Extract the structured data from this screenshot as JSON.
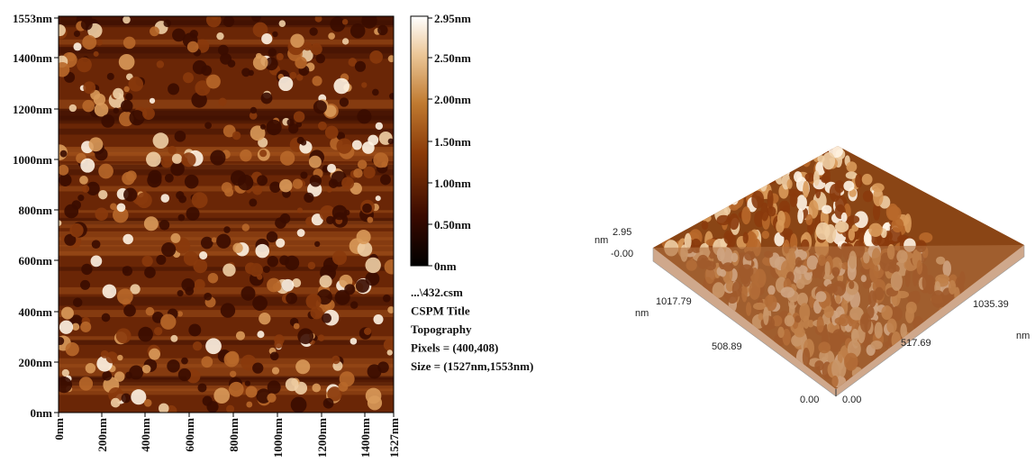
{
  "topography_2d": {
    "y_axis_labels": [
      "1553nm",
      "1400nm",
      "1200nm",
      "1000nm",
      "800nm",
      "600nm",
      "400nm",
      "200nm",
      "0nm"
    ],
    "x_axis_labels": [
      "0nm",
      "200nm",
      "400nm",
      "600nm",
      "800nm",
      "1000nm",
      "1200nm",
      "1400nm",
      "1527nm"
    ],
    "colorbar_labels": [
      "2.95nm",
      "2.50nm",
      "2.00nm",
      "1.50nm",
      "1.00nm",
      "0.50nm",
      "0nm"
    ],
    "info": [
      "...\\432.csm",
      "CSPM Title",
      "Topography",
      "Pixels = (400,408)",
      "Size = (1527nm,1553nm)"
    ]
  },
  "surface_3d": {
    "z_unit": "nm",
    "z_max": "2.95",
    "z_min": "-0.00",
    "left_axis_labels": [
      "1017.79",
      "508.89",
      "0.00"
    ],
    "left_axis_unit": "nm",
    "right_axis_labels": [
      "0.00",
      "517.69",
      "1035.39"
    ],
    "right_axis_unit": "nm"
  }
}
